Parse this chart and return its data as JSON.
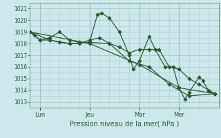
{
  "background_color": "#cce8ec",
  "grid_color": "#aac8cc",
  "line_color": "#2d5a2d",
  "marker_color": "#2d5a2d",
  "xlabel": "Pression niveau de la mer( hPa )",
  "ylim": [
    1012.5,
    1021.5
  ],
  "yticks": [
    1013,
    1014,
    1015,
    1016,
    1017,
    1018,
    1019,
    1020,
    1021
  ],
  "day_labels": [
    "Lun",
    "Jeu",
    "Mar",
    "Mer"
  ],
  "day_positions": [
    0.5,
    3.0,
    5.5,
    7.5
  ],
  "x_axis_min": 0,
  "x_axis_max": 9.5,
  "series": [
    [
      0.0,
      1019.0,
      0.25,
      1018.7,
      0.5,
      1018.3,
      1.0,
      1018.5,
      1.5,
      1019.0,
      2.0,
      1018.3,
      2.5,
      1018.1,
      3.0,
      1018.1,
      3.4,
      1020.5,
      3.6,
      1020.6,
      4.0,
      1020.2,
      4.5,
      1019.0,
      5.0,
      1017.0,
      5.2,
      1015.8,
      5.5,
      1016.5,
      6.0,
      1018.6,
      6.3,
      1017.5,
      6.8,
      1016.0,
      7.2,
      1016.0,
      7.5,
      1014.2,
      7.8,
      1013.2,
      8.0,
      1013.8,
      8.5,
      1015.1,
      8.7,
      1014.8,
      9.0,
      1013.9,
      9.3,
      1013.7
    ],
    [
      0.0,
      1019.0,
      0.5,
      1018.3,
      1.0,
      1018.3,
      1.5,
      1018.1,
      2.0,
      1018.0,
      2.5,
      1018.0,
      3.0,
      1018.3,
      3.5,
      1018.5,
      4.0,
      1018.0,
      4.5,
      1017.7,
      5.0,
      1017.2,
      5.5,
      1017.5,
      6.0,
      1017.5,
      6.5,
      1017.5,
      7.0,
      1016.0,
      7.5,
      1015.8,
      8.0,
      1015.0,
      8.5,
      1014.5,
      9.0,
      1014.0,
      9.3,
      1013.7
    ],
    [
      0.0,
      1019.0,
      1.0,
      1018.3,
      2.0,
      1018.0,
      3.0,
      1018.1,
      4.0,
      1018.0,
      5.0,
      1016.5,
      6.0,
      1016.0,
      7.0,
      1014.5,
      8.0,
      1013.5,
      9.3,
      1013.7
    ],
    [
      0.0,
      1019.0,
      3.0,
      1018.0,
      5.5,
      1016.2,
      7.5,
      1014.2,
      9.3,
      1013.7
    ]
  ]
}
